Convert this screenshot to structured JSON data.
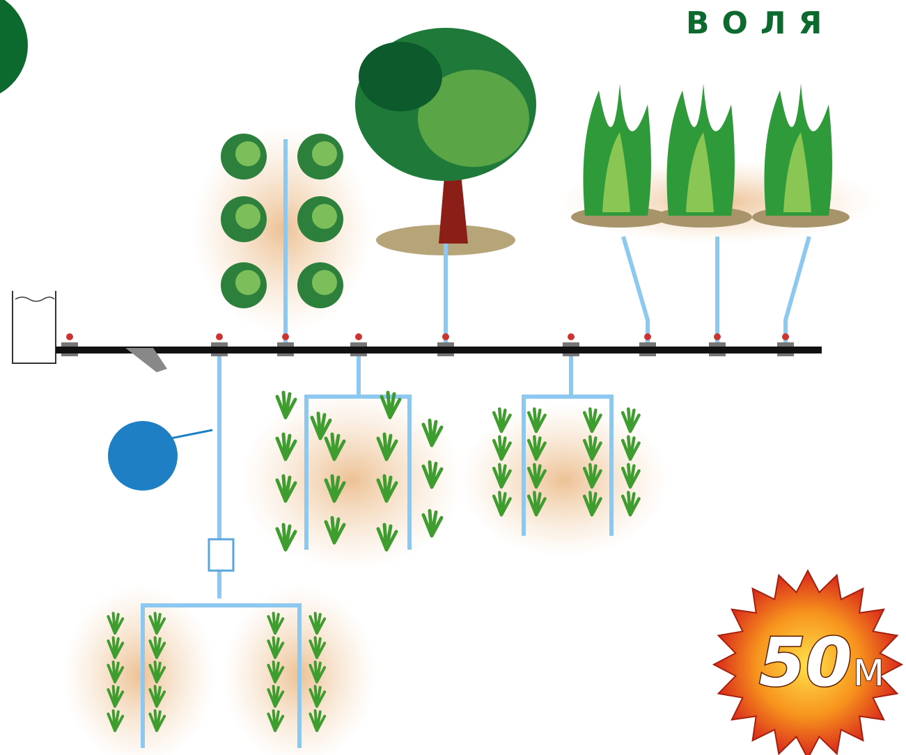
{
  "brand": "ВОЛЯ",
  "badge": {
    "number": "50",
    "unit": "М"
  }
}
